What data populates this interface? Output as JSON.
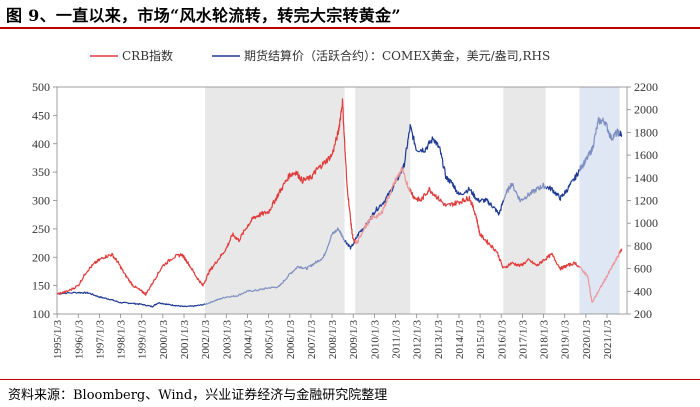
{
  "title": "图 9、一直以来，市场“风水轮流转，转完大宗转黄金”",
  "source": "资料来源：Bloomberg、Wind，兴业证券经济与金融研究院整理",
  "colors": {
    "crb": "#e03c3c",
    "crb_light": "#ec9797",
    "gold": "#1f3a93",
    "gold_light": "#7f8fc0",
    "shade": "#e8e8e8",
    "shade_blue": "#dfe6f4",
    "title_rule": "#c00000"
  },
  "chart_data": {
    "type": "line",
    "legend": [
      "CRB指数",
      "期货结算价（活跃合约）：COMEX黄金，美元/盎司,RHS"
    ],
    "left_axis": {
      "ylim": [
        100,
        500
      ],
      "ticks": [
        100,
        150,
        200,
        250,
        300,
        350,
        400,
        450,
        500
      ]
    },
    "right_axis": {
      "ylim": [
        200,
        2200
      ],
      "ticks": [
        200,
        400,
        600,
        800,
        1000,
        1200,
        1400,
        1600,
        1800,
        2000,
        2200
      ]
    },
    "x_ticks": [
      "1995/1/3",
      "1996/1/3",
      "1997/1/3",
      "1998/1/3",
      "1999/1/3",
      "2000/1/3",
      "2001/1/3",
      "2002/1/3",
      "2003/1/3",
      "2004/1/3",
      "2005/1/3",
      "2006/1/3",
      "2007/1/3",
      "2008/1/3",
      "2009/1/3",
      "2010/1/3",
      "2011/1/3",
      "2012/1/3",
      "2013/1/3",
      "2014/1/3",
      "2015/1/3",
      "2016/1/3",
      "2017/1/3",
      "2018/1/3",
      "2019/1/3",
      "2020/1/3",
      "2021/1/3"
    ],
    "highlight_periods": [
      {
        "start": 2002.0,
        "end": 2008.6,
        "series_emphasis": "CRB指数"
      },
      {
        "start": 2009.1,
        "end": 2011.7,
        "series_emphasis": "COMEX黄金"
      },
      {
        "start": 2016.1,
        "end": 2018.1,
        "series_emphasis": "CRB指数"
      },
      {
        "start": 2019.7,
        "end": 2021.6,
        "series_emphasis": "both"
      }
    ],
    "series": [
      {
        "name": "CRB指数",
        "axis": "left",
        "x": [
          1995.0,
          1995.5,
          1996.0,
          1996.4,
          1996.8,
          1997.2,
          1997.6,
          1997.9,
          1998.2,
          1998.6,
          1999.0,
          1999.2,
          1999.6,
          2000.0,
          2000.5,
          2000.9,
          2001.2,
          2001.6,
          2001.9,
          2002.2,
          2002.6,
          2003.0,
          2003.3,
          2003.6,
          2004.0,
          2004.3,
          2004.6,
          2005.0,
          2005.3,
          2005.6,
          2006.0,
          2006.3,
          2006.6,
          2007.0,
          2007.3,
          2007.6,
          2008.0,
          2008.3,
          2008.5,
          2008.7,
          2008.9,
          2009.0,
          2009.2,
          2009.5,
          2009.9,
          2010.3,
          2010.6,
          2011.0,
          2011.3,
          2011.6,
          2011.9,
          2012.2,
          2012.6,
          2013.0,
          2013.4,
          2013.8,
          2014.2,
          2014.5,
          2014.8,
          2015.0,
          2015.4,
          2015.8,
          2016.1,
          2016.5,
          2016.9,
          2017.3,
          2017.7,
          2018.0,
          2018.4,
          2018.8,
          2019.1,
          2019.5,
          2019.9,
          2020.1,
          2020.3,
          2020.6,
          2020.9,
          2021.2,
          2021.5,
          2021.7
        ],
        "values": [
          135,
          140,
          150,
          175,
          190,
          200,
          205,
          190,
          170,
          150,
          140,
          135,
          160,
          185,
          200,
          205,
          190,
          165,
          150,
          175,
          195,
          215,
          240,
          230,
          255,
          270,
          275,
          280,
          300,
          320,
          345,
          350,
          335,
          340,
          355,
          365,
          380,
          420,
          475,
          330,
          260,
          230,
          225,
          250,
          270,
          275,
          300,
          335,
          355,
          325,
          305,
          300,
          320,
          305,
          290,
          295,
          300,
          305,
          275,
          240,
          225,
          210,
          180,
          190,
          185,
          195,
          185,
          195,
          205,
          180,
          185,
          190,
          175,
          165,
          120,
          140,
          160,
          180,
          200,
          215
        ]
      },
      {
        "name": "期货结算价（活跃合约）：COMEX黄金，美元/盎司,RHS",
        "axis": "right",
        "x": [
          1995.0,
          1996.0,
          1996.5,
          1997.0,
          1997.5,
          1998.0,
          1998.5,
          1999.0,
          1999.5,
          1999.8,
          2000.2,
          2000.6,
          2001.0,
          2001.5,
          2002.0,
          2002.5,
          2003.0,
          2003.5,
          2004.0,
          2004.5,
          2005.0,
          2005.5,
          2006.0,
          2006.4,
          2006.8,
          2007.2,
          2007.6,
          2008.0,
          2008.3,
          2008.6,
          2008.9,
          2009.3,
          2009.7,
          2010.0,
          2010.5,
          2011.0,
          2011.4,
          2011.7,
          2012.0,
          2012.4,
          2012.8,
          2013.1,
          2013.4,
          2013.7,
          2014.0,
          2014.5,
          2014.9,
          2015.3,
          2015.6,
          2015.9,
          2016.2,
          2016.5,
          2016.9,
          2017.3,
          2017.7,
          2018.0,
          2018.4,
          2018.8,
          2019.1,
          2019.5,
          2019.8,
          2020.0,
          2020.3,
          2020.6,
          2020.9,
          2021.2,
          2021.5,
          2021.7
        ],
        "values": [
          380,
          390,
          385,
          350,
          330,
          300,
          295,
          285,
          265,
          300,
          285,
          275,
          265,
          270,
          285,
          320,
          350,
          360,
          400,
          410,
          430,
          440,
          550,
          620,
          600,
          650,
          700,
          900,
          950,
          850,
          780,
          920,
          1000,
          1100,
          1200,
          1350,
          1500,
          1850,
          1650,
          1650,
          1750,
          1650,
          1400,
          1350,
          1250,
          1300,
          1200,
          1200,
          1150,
          1080,
          1250,
          1350,
          1200,
          1250,
          1300,
          1330,
          1300,
          1220,
          1290,
          1400,
          1500,
          1550,
          1650,
          1900,
          1900,
          1750,
          1800,
          1780
        ]
      }
    ]
  }
}
